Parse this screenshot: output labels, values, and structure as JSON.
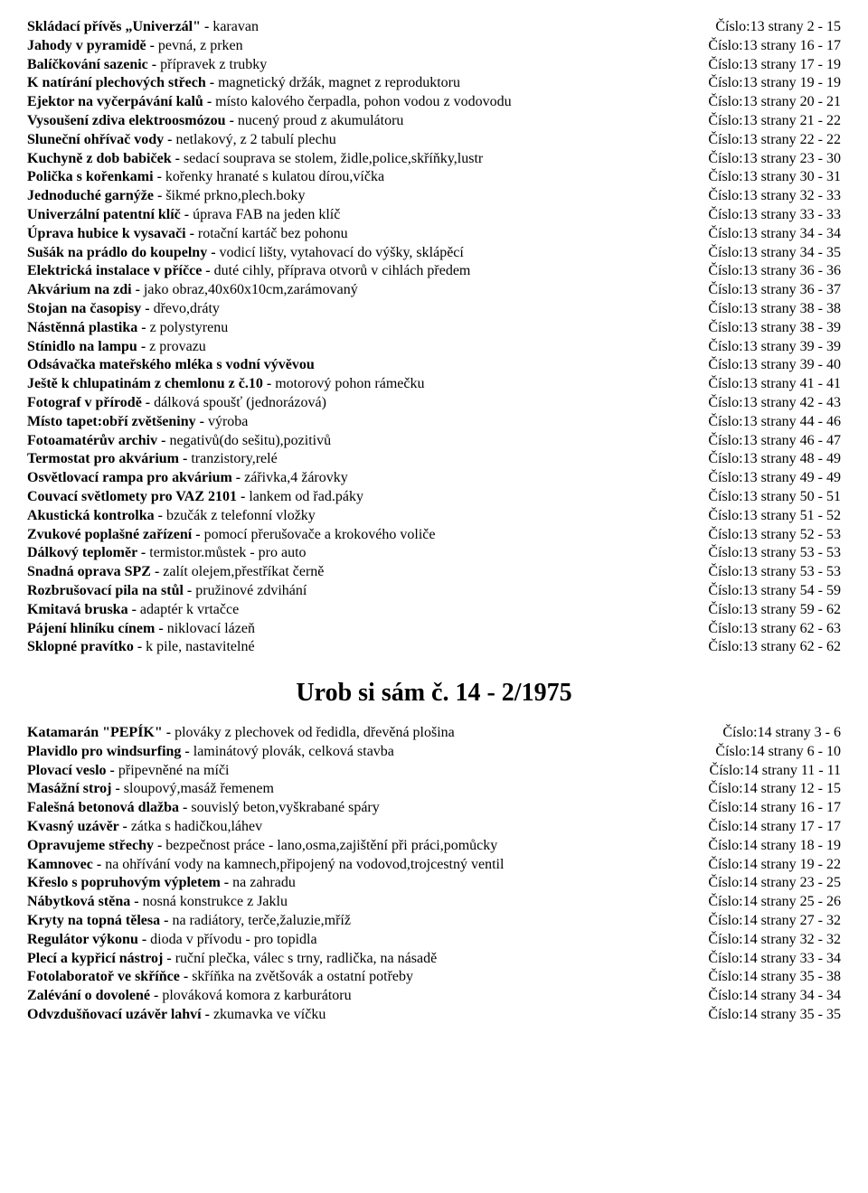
{
  "section1": {
    "rows": [
      {
        "bold": "Skládací přívěs „Univerzál\" - ",
        "rest": "karavan",
        "ref": "Číslo:13 strany   2 - 15"
      },
      {
        "bold": "Jahody v pyramidě - ",
        "rest": "pevná, z prken",
        "ref": "Číslo:13 strany 16 - 17"
      },
      {
        "bold": "Balíčkování sazenic - ",
        "rest": "přípravek z trubky",
        "ref": "Číslo:13 strany 17 - 19"
      },
      {
        "bold": "K natírání plechových střech - ",
        "rest": "magnetický držák, magnet z reproduktoru",
        "ref": "Číslo:13 strany 19 - 19"
      },
      {
        "bold": "Ejektor na vyčerpávání kalů - ",
        "rest": "místo kalového čerpadla, pohon vodou z vodovodu",
        "ref": "Číslo:13 strany 20 - 21"
      },
      {
        "bold": "Vysoušení zdiva elektroosmózou - ",
        "rest": "nucený proud z akumulátoru",
        "ref": "Číslo:13 strany 21 - 22"
      },
      {
        "bold": "Sluneční ohřívač vody - ",
        "rest": "netlakový, z 2 tabulí plechu",
        "ref": "Číslo:13 strany 22 - 22"
      },
      {
        "bold": "Kuchyně z dob babiček - ",
        "rest": "sedací souprava se stolem, židle,police,skříňky,lustr",
        "ref": "Číslo:13 strany 23 - 30"
      },
      {
        "bold": "Polička s kořenkami - ",
        "rest": "kořenky hranaté s kulatou dírou,víčka",
        "ref": "Číslo:13 strany 30 - 31"
      },
      {
        "bold": "Jednoduché garnýže - ",
        "rest": "šikmé prkno,plech.boky",
        "ref": "Číslo:13 strany 32 - 33"
      },
      {
        "bold": "Univerzální patentní klíč - ",
        "rest": "úprava FAB na jeden klíč",
        "ref": "Číslo:13 strany 33 - 33"
      },
      {
        "bold": "Úprava hubice k vysavači - ",
        "rest": "rotační kartáč bez pohonu",
        "ref": "Číslo:13 strany 34 - 34"
      },
      {
        "bold": "Sušák na prádlo do koupelny - ",
        "rest": "vodicí lišty, vytahovací do výšky, sklápěcí",
        "ref": "Číslo:13 strany 34 - 35"
      },
      {
        "bold": "Elektrická instalace v příčce - ",
        "rest": "duté cihly, příprava otvorů v cihlách předem",
        "ref": "Číslo:13 strany 36 - 36"
      },
      {
        "bold": "Akvárium na zdi - ",
        "rest": "jako obraz,40x60x10cm,zarámovaný",
        "ref": "Číslo:13 strany 36 - 37"
      },
      {
        "bold": "Stojan na časopisy - ",
        "rest": "dřevo,dráty",
        "ref": "Číslo:13 strany 38 - 38"
      },
      {
        "bold": "Nástěnná plastika - ",
        "rest": "z polystyrenu",
        "ref": "Číslo:13 strany 38 - 39"
      },
      {
        "bold": "Stínidlo na lampu - ",
        "rest": "z provazu",
        "ref": "Číslo:13 strany 39 - 39"
      },
      {
        "bold": "Odsávačka mateřského mléka s vodní vývěvou",
        "rest": "",
        "ref": "Číslo:13 strany 39 - 40"
      },
      {
        "bold": "Ještě k chlupatinám z chemlonu z č.10 - ",
        "rest": "motorový pohon rámečku",
        "ref": "Číslo:13 strany 41 - 41"
      },
      {
        "bold": "Fotograf v přírodě - ",
        "rest": "dálková spoušť (jednorázová)",
        "ref": "Číslo:13 strany 42 - 43"
      },
      {
        "bold": "Místo tapet:obří zvětšeniny - ",
        "rest": "výroba",
        "ref": "Číslo:13 strany 44 - 46"
      },
      {
        "bold": "Fotoamatérův archiv - ",
        "rest": "negativů(do sešitu),pozitivů",
        "ref": "Číslo:13 strany 46 - 47"
      },
      {
        "bold": "Termostat pro akvárium - ",
        "rest": "tranzistory,relé",
        "ref": "Číslo:13 strany 48 - 49"
      },
      {
        "bold": "Osvětlovací rampa pro akvárium - ",
        "rest": "zářivka,4 žárovky",
        "ref": "Číslo:13 strany 49 - 49"
      },
      {
        "bold": "Couvací světlomety pro VAZ 2101 - ",
        "rest": "lankem od řad.páky",
        "ref": "Číslo:13 strany 50 - 51"
      },
      {
        "bold": "Akustická kontrolka - ",
        "rest": "bzučák z telefonní vložky",
        "ref": "Číslo:13 strany 51 - 52"
      },
      {
        "bold": "Zvukové poplašné zařízení - ",
        "rest": "pomocí přerušovače a krokového voliče",
        "ref": "Číslo:13 strany 52 - 53"
      },
      {
        "bold": "Dálkový teploměr - ",
        "rest": "termistor.můstek - pro auto",
        "ref": "Číslo:13 strany 53 - 53"
      },
      {
        "bold": "Snadná oprava SPZ - ",
        "rest": "zalít olejem,přestříkat černě",
        "ref": "Číslo:13 strany 53 - 53"
      },
      {
        "bold": "Rozbrušovací pila na stůl - ",
        "rest": "pružinové zdvihání",
        "ref": "Číslo:13 strany 54 - 59"
      },
      {
        "bold": "Kmitavá bruska - ",
        "rest": "adaptér k vrtačce",
        "ref": "Číslo:13 strany 59 - 62"
      },
      {
        "bold": "Pájení hliníku cínem - ",
        "rest": "niklovací lázeň",
        "ref": "Číslo:13 strany 62 - 63"
      },
      {
        "bold": "Sklopné pravítko - ",
        "rest": "k pile, nastavitelné",
        "ref": "Číslo:13 strany 62 - 62"
      }
    ]
  },
  "heading": "Urob si sám č. 14 - 2/1975",
  "section2": {
    "rows": [
      {
        "bold": "Katamarán \"PEPÍK\" - ",
        "rest": "plováky z plechovek od ředidla, dřevěná plošina",
        "ref": "Číslo:14 strany   3 - 6"
      },
      {
        "bold": "Plavidlo pro windsurfing - ",
        "rest": "laminátový plovák, celková stavba",
        "ref": "Číslo:14 strany   6 - 10"
      },
      {
        "bold": "Plovací veslo - ",
        "rest": "připevněné na míči",
        "ref": "Číslo:14 strany 11 - 11"
      },
      {
        "bold": "Masážní stroj - ",
        "rest": "sloupový,masáž řemenem",
        "ref": "Číslo:14 strany 12 - 15"
      },
      {
        "bold": "Falešná betonová dlažba - ",
        "rest": "souvislý beton,vyškrabané spáry",
        "ref": "Číslo:14 strany 16 - 17"
      },
      {
        "bold": "Kvasný uzávěr - ",
        "rest": "zátka s hadičkou,láhev",
        "ref": "Číslo:14 strany 17 - 17"
      },
      {
        "bold": "Opravujeme střechy - ",
        "rest": "bezpečnost práce - lano,osma,zajištění při práci,pomůcky",
        "ref": "Číslo:14 strany 18 - 19"
      },
      {
        "bold": "Kamnovec - ",
        "rest": "na ohřívání vody na kamnech,připojený na vodovod,trojcestný ventil",
        "ref": "Číslo:14 strany 19 - 22"
      },
      {
        "bold": "Křeslo s popruhovým výpletem - ",
        "rest": "na zahradu",
        "ref": "Číslo:14 strany 23 - 25"
      },
      {
        "bold": "Nábytková stěna - ",
        "rest": "nosná konstrukce z Jaklu",
        "ref": "Číslo:14 strany 25 - 26"
      },
      {
        "bold": "Kryty na topná tělesa - ",
        "rest": "na radiátory, terče,žaluzie,mříž",
        "ref": "Číslo:14 strany 27 - 32"
      },
      {
        "bold": "Regulátor výkonu - ",
        "rest": "dioda v přívodu - pro topidla",
        "ref": "Číslo:14 strany 32 - 32"
      },
      {
        "bold": "Plecí a kypřicí nástroj - ",
        "rest": "ruční plečka, válec s trny, radlička, na násadě",
        "ref": "Číslo:14 strany 33 - 34"
      },
      {
        "bold": "Fotolaboratoř ve skříňce - ",
        "rest": "skříňka na zvětšovák a ostatní potřeby",
        "ref": "Číslo:14 strany 35 - 38"
      },
      {
        "bold": "Zalévání o dovolené - ",
        "rest": "plováková komora z karburátoru",
        "ref": "Číslo:14 strany 34 - 34"
      },
      {
        "bold": "Odvzdušňovací uzávěr lahví - ",
        "rest": "zkumavka ve víčku",
        "ref": "Číslo:14 strany 35 - 35"
      }
    ]
  }
}
